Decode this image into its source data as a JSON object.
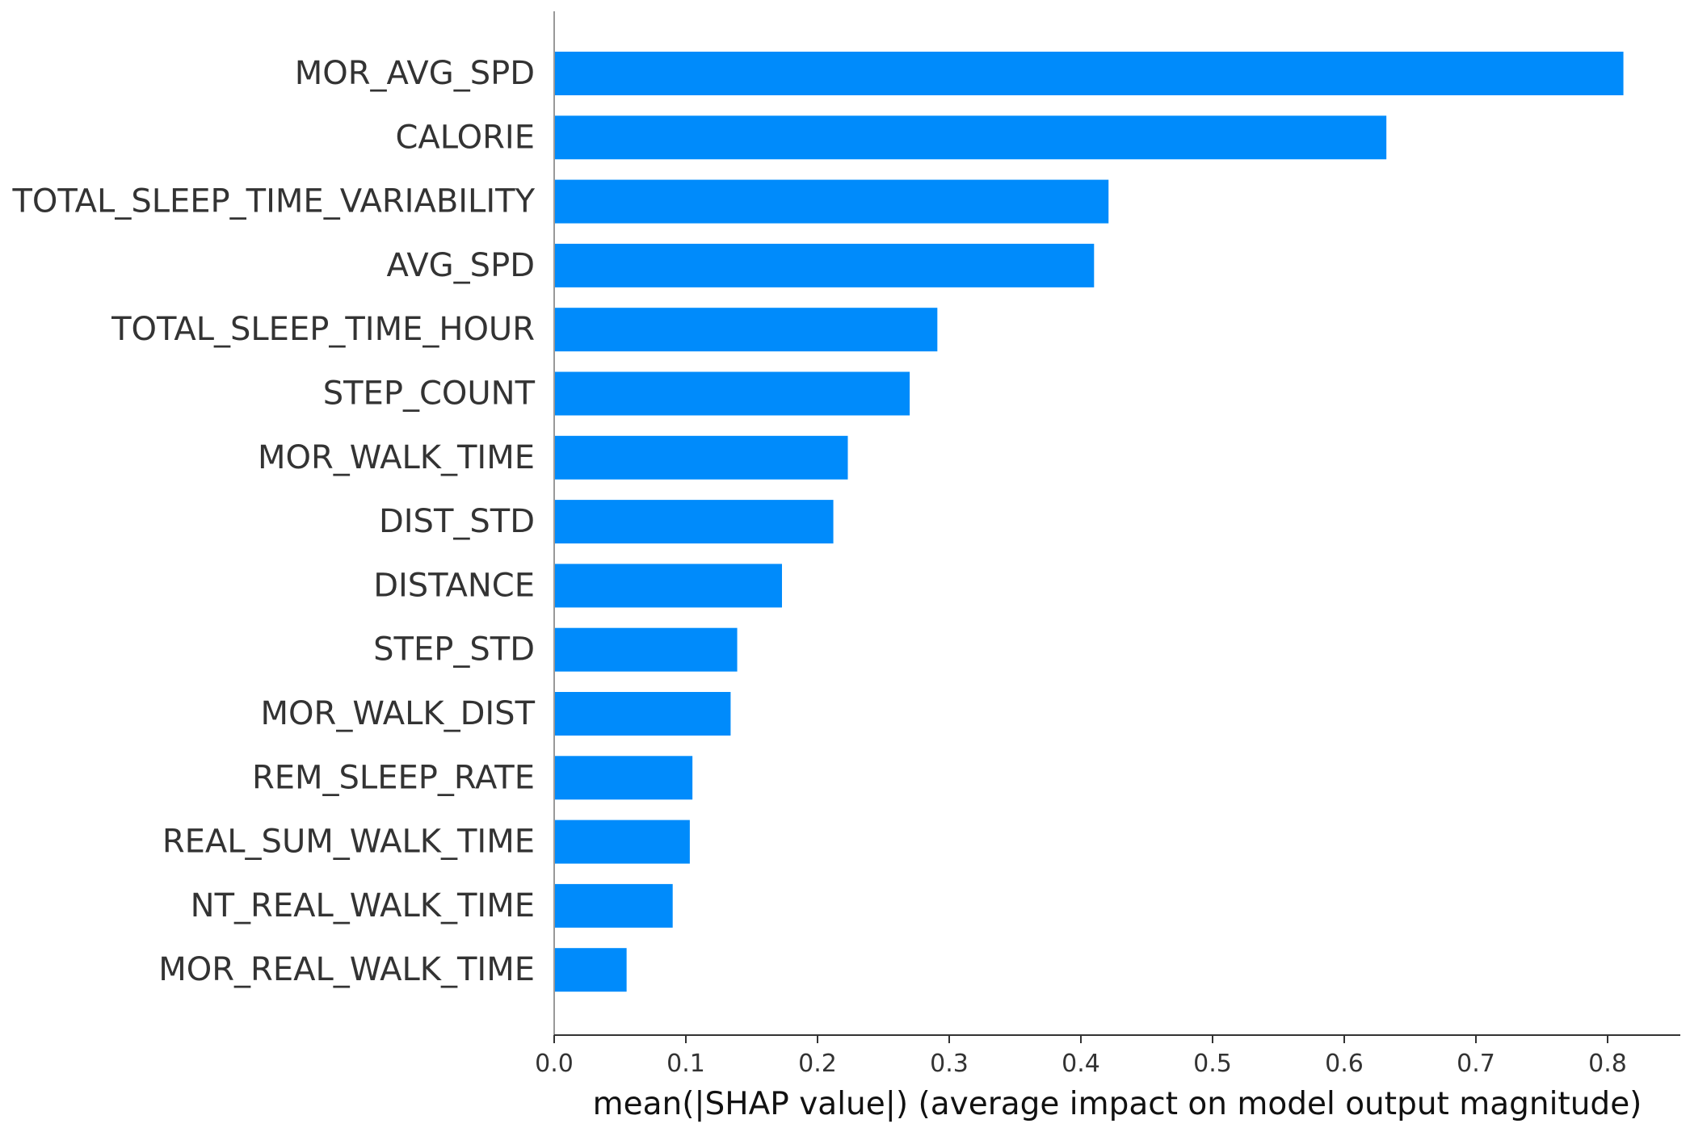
{
  "chart_data": {
    "type": "bar",
    "orientation": "horizontal",
    "title": "",
    "xlabel": "mean(|SHAP value|) (average impact on model output magnitude)",
    "ylabel": "",
    "xlim": [
      0,
      0.85
    ],
    "xticks": [
      "0.0",
      "0.1",
      "0.2",
      "0.3",
      "0.4",
      "0.5",
      "0.6",
      "0.7",
      "0.8"
    ],
    "grid": false,
    "bar_color": "#008bfb",
    "categories": [
      "MOR_AVG_SPD",
      "CALORIE",
      "TOTAL_SLEEP_TIME_VARIABILITY",
      "AVG_SPD",
      "TOTAL_SLEEP_TIME_HOUR",
      "STEP_COUNT",
      "MOR_WALK_TIME",
      "DIST_STD",
      "DISTANCE",
      "STEP_STD",
      "MOR_WALK_DIST",
      "REM_SLEEP_RATE",
      "REAL_SUM_WALK_TIME",
      "NT_REAL_WALK_TIME",
      "MOR_REAL_WALK_TIME"
    ],
    "values": [
      0.812,
      0.632,
      0.421,
      0.41,
      0.291,
      0.27,
      0.223,
      0.212,
      0.173,
      0.139,
      0.134,
      0.105,
      0.103,
      0.09,
      0.055
    ]
  }
}
